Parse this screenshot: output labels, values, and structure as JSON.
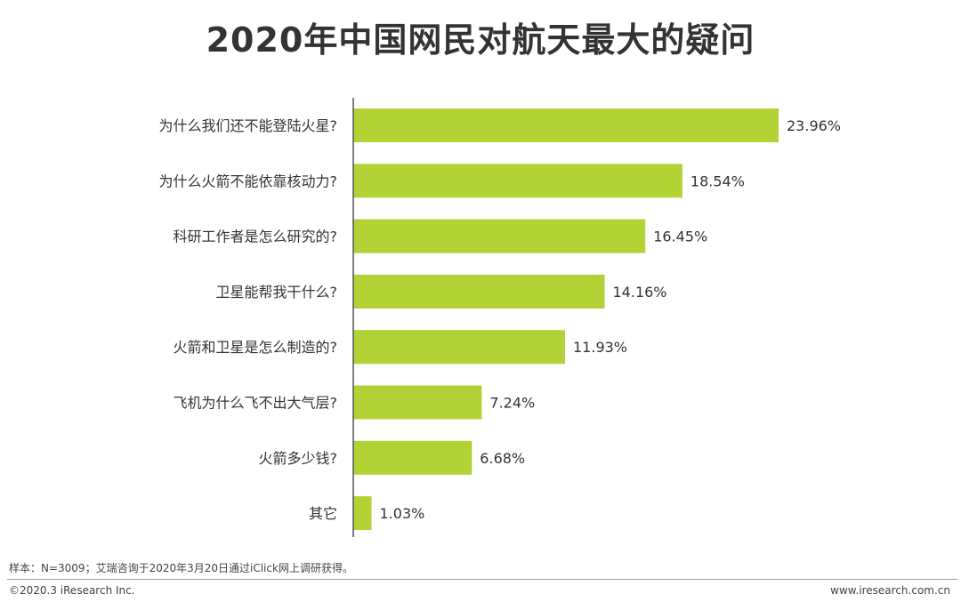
{
  "chart_data": {
    "type": "bar",
    "orientation": "horizontal",
    "title": "2020年中国网民对航天最大的疑问",
    "categories": [
      "为什么我们还不能登陆火星?",
      "为什么火箭不能依靠核动力?",
      "科研工作者是怎么研究的?",
      "卫星能帮我干什么?",
      "火箭和卫星是怎么制造的?",
      "飞机为什么飞不出大气层?",
      "火箭多少钱?",
      "其它"
    ],
    "values": [
      23.96,
      18.54,
      16.45,
      14.16,
      11.93,
      7.24,
      6.68,
      1.03
    ],
    "value_labels": [
      "23.96%",
      "18.54%",
      "16.45%",
      "14.16%",
      "11.93%",
      "7.24%",
      "6.68%",
      "1.03%"
    ],
    "xlim": [
      0,
      25
    ],
    "xlabel": "",
    "ylabel": "",
    "grid": false,
    "bar_color": "#b2d235"
  },
  "note": "样本：N=3009；艾瑞咨询于2020年3月20日通过iClick网上调研获得。",
  "footer": {
    "copyright": "©2020.3 iResearch Inc.",
    "website": "www.iresearch.com.cn"
  }
}
